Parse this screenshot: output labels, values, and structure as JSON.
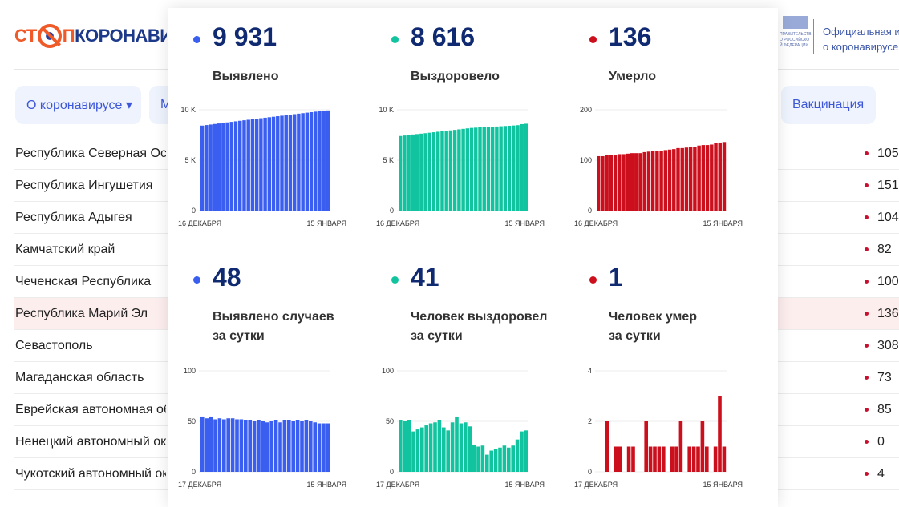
{
  "header": {
    "logo_text": "СТОПКОРОНАВИРУС",
    "gov_logo_text": "ПРАВИТЕЛЬСТВО РОССИЙСКОЙ ФЕДЕРАЦИИ",
    "gov_text_1": "Официальная ин",
    "gov_text_2": "о коронавирусе в"
  },
  "nav": {
    "about": "О коронавирусе ▾",
    "m": "М",
    "vaccination": "Вакцинация"
  },
  "regions": [
    {
      "name": "Республика Северная Осетия",
      "value": "105"
    },
    {
      "name": "Республика Ингушетия",
      "value": "151"
    },
    {
      "name": "Республика Адыгея",
      "value": "104"
    },
    {
      "name": "Камчатский край",
      "value": "82"
    },
    {
      "name": "Чеченская Республика",
      "value": "100"
    },
    {
      "name": "Республика Марий Эл",
      "value": "136",
      "highlighted": true
    },
    {
      "name": "Севастополь",
      "value": "308"
    },
    {
      "name": "Магаданская область",
      "value": "73"
    },
    {
      "name": "Еврейская автономная область",
      "value": "85"
    },
    {
      "name": "Ненецкий автономный округ",
      "value": "0"
    },
    {
      "name": "Чукотский автономный округ",
      "value": "4"
    }
  ],
  "colors": {
    "blue": "#3a5ef0",
    "green": "#11c49f",
    "red": "#cc0f1c"
  },
  "stats": [
    {
      "number": "9 931",
      "label1": "Выявлено",
      "label2": "",
      "color": "blue"
    },
    {
      "number": "8 616",
      "label1": "Выздоровело",
      "label2": "",
      "color": "green"
    },
    {
      "number": "136",
      "label1": "Умерло",
      "label2": "",
      "color": "red"
    },
    {
      "number": "48",
      "label1": "Выявлено случаев",
      "label2": "за сутки",
      "color": "blue"
    },
    {
      "number": "41",
      "label1": "Человек выздоровел",
      "label2": "за сутки",
      "color": "green"
    },
    {
      "number": "1",
      "label1": "Человек умер",
      "label2": "за сутки",
      "color": "red"
    }
  ],
  "chart_data": [
    {
      "type": "bar",
      "color": "blue",
      "ylim": [
        0,
        10000
      ],
      "yticks": [
        "0",
        "5 K",
        "10 K"
      ],
      "ytick_values": [
        0,
        5000,
        10000
      ],
      "xlabels": [
        "16 ДЕКАБРЯ",
        "15 ЯНВАРЯ"
      ],
      "values": [
        8430,
        8485,
        8538,
        8592,
        8644,
        8697,
        8749,
        8802,
        8855,
        8907,
        8959,
        9010,
        9061,
        9111,
        9162,
        9212,
        9261,
        9311,
        9362,
        9411,
        9462,
        9513,
        9563,
        9614,
        9664,
        9715,
        9765,
        9814,
        9862,
        9883,
        9931
      ]
    },
    {
      "type": "bar",
      "color": "green",
      "ylim": [
        0,
        10000
      ],
      "yticks": [
        "0",
        "5 K",
        "10 K"
      ],
      "ytick_values": [
        0,
        5000,
        10000
      ],
      "xlabels": [
        "16 ДЕКАБРЯ",
        "15 ЯНВАРЯ"
      ],
      "values": [
        7400,
        7450,
        7501,
        7552,
        7592,
        7634,
        7678,
        7724,
        7772,
        7821,
        7872,
        7916,
        7957,
        8006,
        8060,
        8108,
        8157,
        8202,
        8229,
        8254,
        8280,
        8297,
        8318,
        8341,
        8365,
        8391,
        8415,
        8441,
        8473,
        8575,
        8616
      ]
    },
    {
      "type": "bar",
      "color": "red",
      "ylim": [
        0,
        200
      ],
      "yticks": [
        "0",
        "100",
        "200"
      ],
      "ytick_values": [
        0,
        100,
        200
      ],
      "xlabels": [
        "16 ДЕКАБРЯ",
        "15 ЯНВАРЯ"
      ],
      "values": [
        108,
        108,
        110,
        110,
        111,
        112,
        112,
        113,
        114,
        114,
        114,
        116,
        117,
        118,
        119,
        119,
        120,
        121,
        122,
        124,
        124,
        125,
        126,
        127,
        129,
        130,
        130,
        131,
        134,
        135,
        136
      ]
    },
    {
      "type": "bar",
      "color": "blue",
      "ylim": [
        0,
        100
      ],
      "yticks": [
        "0",
        "50",
        "100"
      ],
      "ytick_values": [
        0,
        50,
        100
      ],
      "xlabels": [
        "17 ДЕКАБРЯ",
        "15 ЯНВАРЯ"
      ],
      "values": [
        54,
        53,
        54,
        52,
        53,
        52,
        53,
        53,
        52,
        52,
        51,
        51,
        50,
        51,
        50,
        49,
        50,
        51,
        49,
        51,
        51,
        50,
        51,
        50,
        51,
        50,
        49,
        48,
        48,
        48
      ]
    },
    {
      "type": "bar",
      "color": "green",
      "ylim": [
        0,
        100
      ],
      "yticks": [
        "0",
        "50",
        "100"
      ],
      "ytick_values": [
        0,
        50,
        100
      ],
      "xlabels": [
        "17 ДЕКАБРЯ",
        "15 ЯНВАРЯ"
      ],
      "values": [
        51,
        50,
        51,
        40,
        42,
        44,
        46,
        48,
        49,
        51,
        44,
        41,
        49,
        54,
        48,
        49,
        45,
        27,
        25,
        26,
        17,
        21,
        23,
        24,
        26,
        24,
        26,
        32,
        40,
        41
      ]
    },
    {
      "type": "bar",
      "color": "red",
      "ylim": [
        0,
        4
      ],
      "yticks": [
        "0",
        "2",
        "4"
      ],
      "ytick_values": [
        0,
        2,
        4
      ],
      "xlabels": [
        "17 ДЕКАБРЯ",
        "15 ЯНВАРЯ"
      ],
      "values": [
        0,
        0,
        2,
        0,
        1,
        1,
        0,
        1,
        1,
        0,
        0,
        2,
        1,
        1,
        1,
        1,
        0,
        1,
        1,
        2,
        0,
        1,
        1,
        1,
        2,
        1,
        0,
        1,
        3,
        1
      ]
    }
  ]
}
